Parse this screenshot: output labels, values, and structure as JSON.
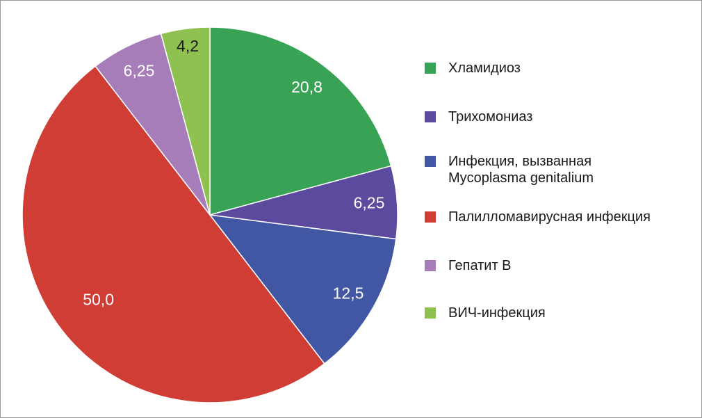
{
  "chart_data": {
    "type": "pie",
    "categories": [
      "Хламидиоз",
      "Трихомониаз",
      "Инфекция, вызванная\nMycoplasma genitalium",
      "Палилломавирусная инфекция",
      "Гепатит B",
      "ВИЧ-инфекция"
    ],
    "values": [
      20.8,
      6.25,
      12.5,
      50.0,
      6.25,
      4.2
    ],
    "value_labels": [
      "20,8",
      "6,25",
      "12,5",
      "50,0",
      "6,25",
      "4,2"
    ],
    "colors": [
      "#38a354",
      "#5b4a9e",
      "#4157a4",
      "#cf3d34",
      "#a77db9",
      "#8ec150"
    ]
  }
}
